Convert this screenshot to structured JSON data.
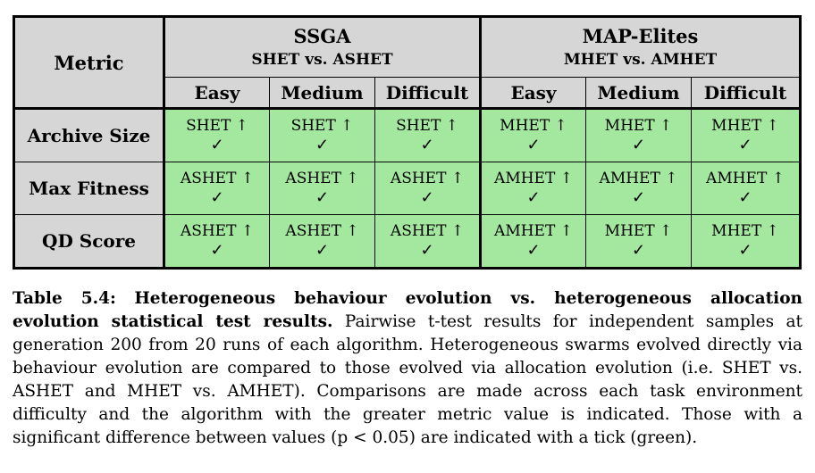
{
  "table": {
    "metric_header": "Metric",
    "groups": [
      {
        "name": "SSGA",
        "comparison": "SHET vs. ASHET"
      },
      {
        "name": "MAP-Elites",
        "comparison": "MHET vs. AMHET"
      }
    ],
    "difficulties": [
      "Easy",
      "Medium",
      "Difficult",
      "Easy",
      "Medium",
      "Difficult"
    ],
    "rows": [
      {
        "metric": "Archive Size",
        "cells": [
          "SHET ↑",
          "SHET ↑",
          "SHET ↑",
          "MHET ↑",
          "MHET ↑",
          "MHET ↑"
        ]
      },
      {
        "metric": "Max Fitness",
        "cells": [
          "ASHET ↑",
          "ASHET ↑",
          "ASHET ↑",
          "AMHET ↑",
          "AMHET ↑",
          "AMHET ↑"
        ]
      },
      {
        "metric": "QD Score",
        "cells": [
          "ASHET ↑",
          "ASHET ↑",
          "ASHET ↑",
          "AMHET ↑",
          "MHET ↑",
          "MHET ↑"
        ]
      }
    ],
    "tick": "✓",
    "significant_color": "#a3e89e",
    "header_color": "#d6d6d6"
  },
  "caption": {
    "label": "Table 5.4:",
    "title": "Heterogeneous behaviour evolution vs. heterogeneous allocation evolution statistical test results.",
    "body": "Pairwise t-test results for independent samples at generation 200 from 20 runs of each algorithm. Heterogeneous swarms evolved directly via behaviour evolution are compared to those evolved via allocation evolution (i.e. SHET vs. ASHET and MHET vs. AMHET). Comparisons are made across each task environment difficulty and the algorithm with the greater metric value is indicated. Those with a significant difference between values (p < 0.05) are indicated with a tick (green)."
  }
}
